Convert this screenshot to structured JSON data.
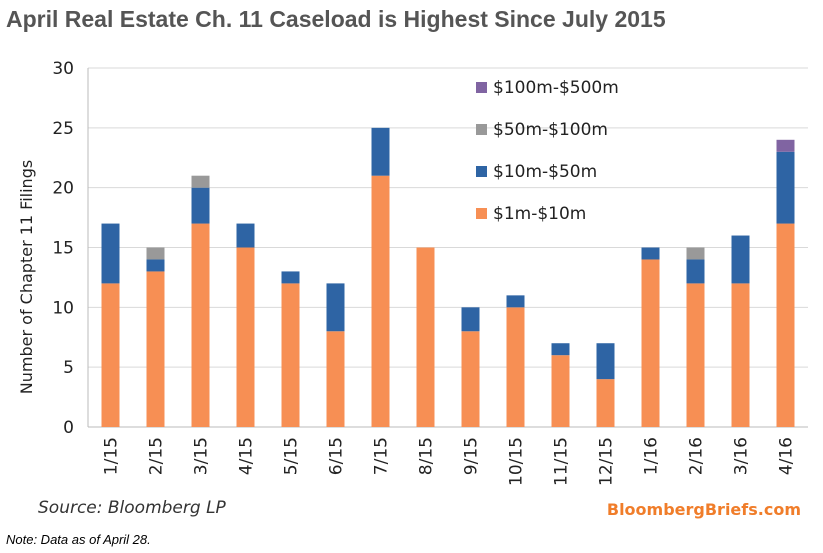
{
  "chart_data": {
    "type": "bar",
    "stacked": true,
    "title": "April Real Estate Ch. 11 Caseload is Highest Since July 2015",
    "ylabel": "Number of Chapter 11 Filings",
    "xlabel": "",
    "ylim": [
      0,
      30
    ],
    "yticks": [
      0,
      5,
      10,
      15,
      20,
      25,
      30
    ],
    "grid": true,
    "legend_position": "top-right",
    "categories": [
      "1/15",
      "2/15",
      "3/15",
      "4/15",
      "5/15",
      "6/15",
      "7/15",
      "8/15",
      "9/15",
      "10/15",
      "11/15",
      "12/15",
      "1/16",
      "2/16",
      "3/16",
      "4/16"
    ],
    "series": [
      {
        "name": "$1m-$10m",
        "color": "#f78f54",
        "values": [
          12,
          13,
          17,
          15,
          12,
          8,
          21,
          15,
          8,
          10,
          6,
          4,
          14,
          12,
          12,
          17
        ]
      },
      {
        "name": "$10m-$50m",
        "color": "#2e64a4",
        "values": [
          5,
          1,
          3,
          2,
          1,
          4,
          4,
          0,
          2,
          1,
          1,
          3,
          1,
          2,
          4,
          6
        ]
      },
      {
        "name": "$50m-$100m",
        "color": "#999999",
        "values": [
          0,
          1,
          1,
          0,
          0,
          0,
          0,
          0,
          0,
          0,
          0,
          0,
          0,
          1,
          0,
          0
        ]
      },
      {
        "name": "$100m-$500m",
        "color": "#8064a2",
        "values": [
          0,
          0,
          0,
          0,
          0,
          0,
          0,
          0,
          0,
          0,
          0,
          0,
          0,
          0,
          0,
          1
        ]
      }
    ],
    "legend_order": [
      "$100m-$500m",
      "$50m-$100m",
      "$10m-$50m",
      "$1m-$10m"
    ]
  },
  "footer": {
    "source": "Source: Bloomberg LP",
    "brand": "BloombergBriefs.com",
    "note": "Note: Data as of April 28."
  }
}
